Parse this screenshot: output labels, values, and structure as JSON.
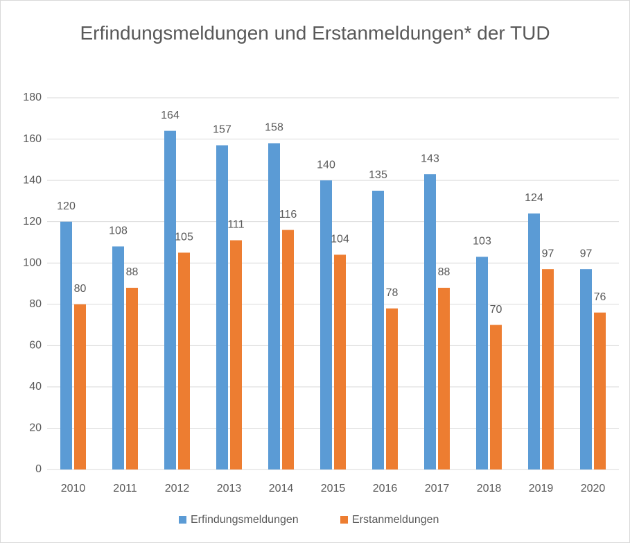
{
  "chart_data": {
    "type": "bar",
    "title": "Erfindungsmeldungen und Erstanmeldungen* der TUD",
    "categories": [
      "2010",
      "2011",
      "2012",
      "2013",
      "2014",
      "2015",
      "2016",
      "2017",
      "2018",
      "2019",
      "2020"
    ],
    "series": [
      {
        "name": "Erfindungsmeldungen",
        "color": "#5b9bd5",
        "values": [
          120,
          108,
          164,
          157,
          158,
          140,
          135,
          143,
          103,
          124,
          97
        ]
      },
      {
        "name": "Erstanmeldungen",
        "color": "#ed7d31",
        "values": [
          80,
          88,
          105,
          111,
          116,
          104,
          78,
          88,
          70,
          97,
          76
        ]
      }
    ],
    "ylim": [
      0,
      180
    ],
    "yticks": [
      0,
      20,
      40,
      60,
      80,
      100,
      120,
      140,
      160,
      180
    ],
    "grid": true,
    "legend": "bottom"
  }
}
